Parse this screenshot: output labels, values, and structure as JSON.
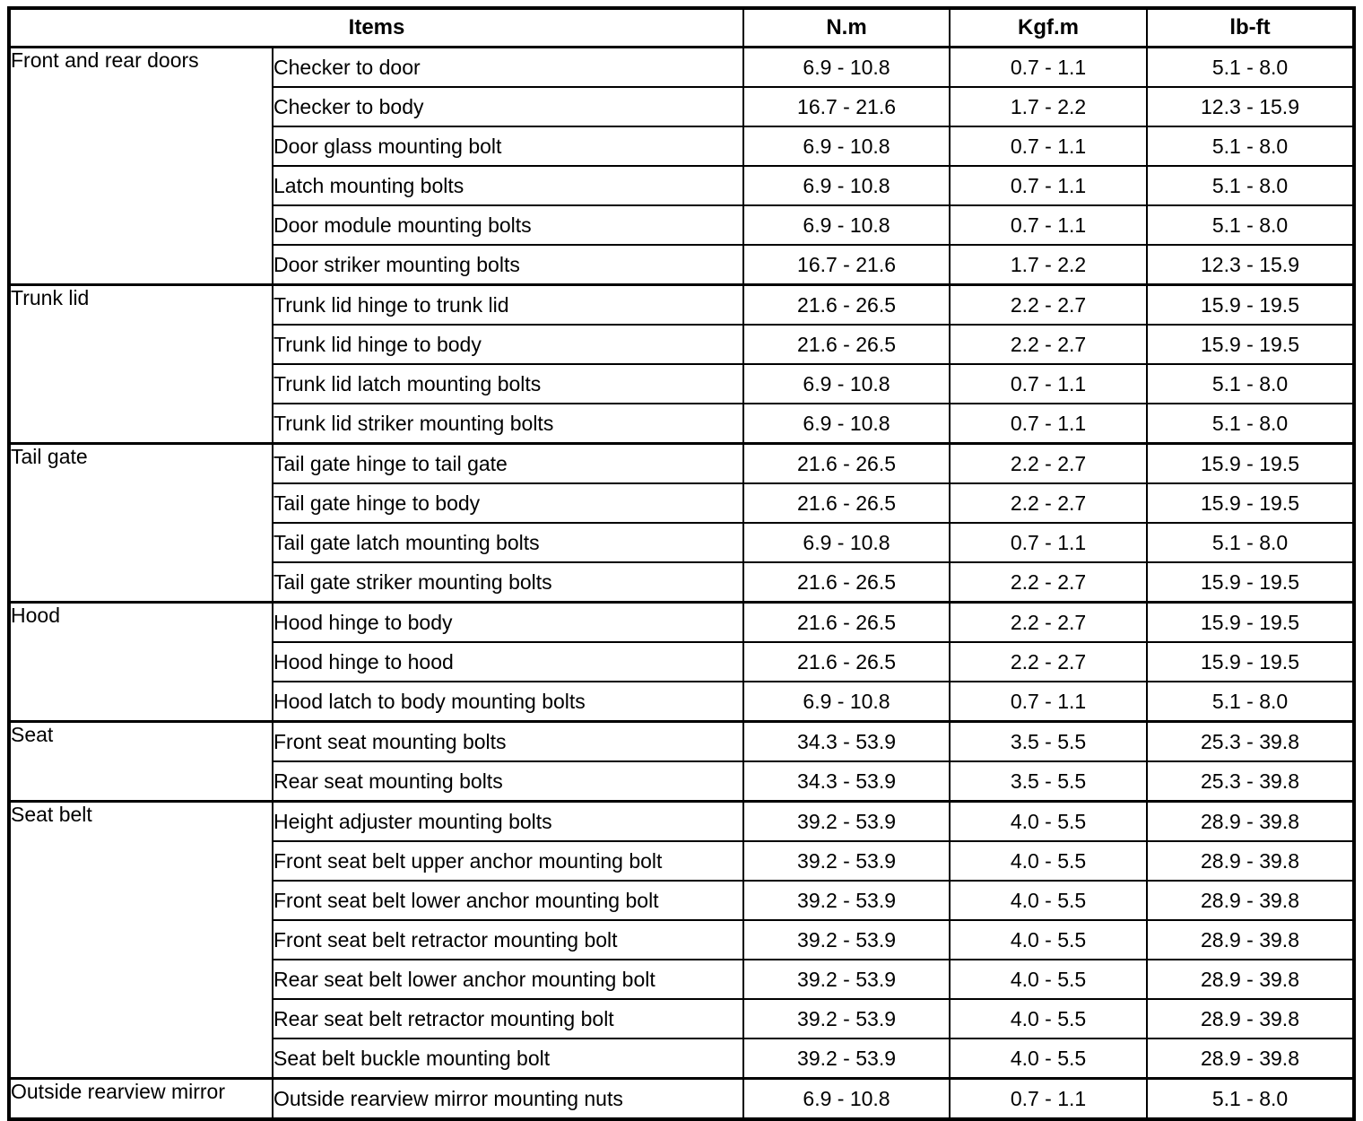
{
  "table": {
    "headers": {
      "items": "Items",
      "nm": "N.m",
      "kgfm": "Kgf.m",
      "lbft": "lb-ft"
    },
    "sections": [
      {
        "category": "Front and rear doors",
        "rows": [
          {
            "item": "Checker to door",
            "nm": "6.9 - 10.8",
            "kgfm": "0.7 - 1.1",
            "lbft": "5.1 - 8.0"
          },
          {
            "item": "Checker to body",
            "nm": "16.7 - 21.6",
            "kgfm": "1.7 - 2.2",
            "lbft": "12.3 - 15.9"
          },
          {
            "item": "Door glass mounting bolt",
            "nm": "6.9 - 10.8",
            "kgfm": "0.7 - 1.1",
            "lbft": "5.1 - 8.0"
          },
          {
            "item": "Latch mounting bolts",
            "nm": "6.9 - 10.8",
            "kgfm": "0.7 - 1.1",
            "lbft": "5.1 - 8.0"
          },
          {
            "item": "Door module mounting bolts",
            "nm": "6.9 - 10.8",
            "kgfm": "0.7 - 1.1",
            "lbft": "5.1 - 8.0"
          },
          {
            "item": "Door striker mounting bolts",
            "nm": "16.7 - 21.6",
            "kgfm": "1.7 - 2.2",
            "lbft": "12.3 - 15.9"
          }
        ]
      },
      {
        "category": "Trunk lid",
        "rows": [
          {
            "item": "Trunk lid hinge to trunk lid",
            "nm": "21.6 - 26.5",
            "kgfm": "2.2 - 2.7",
            "lbft": "15.9 - 19.5"
          },
          {
            "item": "Trunk lid hinge to body",
            "nm": "21.6 - 26.5",
            "kgfm": "2.2 - 2.7",
            "lbft": "15.9 - 19.5"
          },
          {
            "item": "Trunk lid latch mounting bolts",
            "nm": "6.9 - 10.8",
            "kgfm": "0.7 - 1.1",
            "lbft": "5.1 - 8.0"
          },
          {
            "item": "Trunk lid striker mounting bolts",
            "nm": "6.9 - 10.8",
            "kgfm": "0.7 - 1.1",
            "lbft": "5.1 - 8.0"
          }
        ]
      },
      {
        "category": "Tail gate",
        "rows": [
          {
            "item": "Tail gate hinge to tail gate",
            "nm": "21.6 - 26.5",
            "kgfm": "2.2 - 2.7",
            "lbft": "15.9 - 19.5"
          },
          {
            "item": "Tail gate hinge to body",
            "nm": "21.6 - 26.5",
            "kgfm": "2.2 - 2.7",
            "lbft": "15.9 - 19.5"
          },
          {
            "item": "Tail gate latch mounting bolts",
            "nm": "6.9 - 10.8",
            "kgfm": "0.7 - 1.1",
            "lbft": "5.1 - 8.0"
          },
          {
            "item": "Tail gate striker mounting bolts",
            "nm": "21.6 - 26.5",
            "kgfm": "2.2 - 2.7",
            "lbft": "15.9 - 19.5"
          }
        ]
      },
      {
        "category": "Hood",
        "rows": [
          {
            "item": "Hood hinge to body",
            "nm": "21.6 - 26.5",
            "kgfm": "2.2 - 2.7",
            "lbft": "15.9 - 19.5"
          },
          {
            "item": "Hood hinge to hood",
            "nm": "21.6 - 26.5",
            "kgfm": "2.2 - 2.7",
            "lbft": "15.9 - 19.5"
          },
          {
            "item": "Hood latch to body mounting bolts",
            "nm": "6.9 - 10.8",
            "kgfm": "0.7 - 1.1",
            "lbft": "5.1 - 8.0"
          }
        ]
      },
      {
        "category": "Seat",
        "rows": [
          {
            "item": "Front seat mounting bolts",
            "nm": "34.3 - 53.9",
            "kgfm": "3.5 - 5.5",
            "lbft": "25.3 - 39.8"
          },
          {
            "item": "Rear seat mounting bolts",
            "nm": "34.3 - 53.9",
            "kgfm": "3.5 - 5.5",
            "lbft": "25.3 - 39.8"
          }
        ]
      },
      {
        "category": "Seat belt",
        "rows": [
          {
            "item": "Height adjuster mounting bolts",
            "nm": "39.2 - 53.9",
            "kgfm": "4.0 - 5.5",
            "lbft": "28.9 - 39.8"
          },
          {
            "item": "Front seat belt upper anchor mounting bolt",
            "nm": "39.2 - 53.9",
            "kgfm": "4.0 - 5.5",
            "lbft": "28.9 - 39.8"
          },
          {
            "item": "Front seat belt lower anchor mounting bolt",
            "nm": "39.2 - 53.9",
            "kgfm": "4.0 - 5.5",
            "lbft": "28.9 - 39.8"
          },
          {
            "item": "Front seat belt retractor mounting bolt",
            "nm": "39.2 - 53.9",
            "kgfm": "4.0 - 5.5",
            "lbft": "28.9 - 39.8"
          },
          {
            "item": "Rear seat belt lower anchor mounting bolt",
            "nm": "39.2 - 53.9",
            "kgfm": "4.0 - 5.5",
            "lbft": "28.9 - 39.8"
          },
          {
            "item": "Rear seat belt retractor mounting bolt",
            "nm": "39.2 - 53.9",
            "kgfm": "4.0 - 5.5",
            "lbft": "28.9 - 39.8"
          },
          {
            "item": "Seat belt buckle mounting bolt",
            "nm": "39.2 - 53.9",
            "kgfm": "4.0 - 5.5",
            "lbft": "28.9 - 39.8"
          }
        ]
      },
      {
        "category": "Outside rearview mirror",
        "rows": [
          {
            "item": "Outside rearview mirror mounting nuts",
            "nm": "6.9 - 10.8",
            "kgfm": "0.7 - 1.1",
            "lbft": "5.1 - 8.0"
          }
        ]
      }
    ]
  },
  "colors": {
    "border": "#000000",
    "background": "#ffffff",
    "text": "#000000"
  }
}
